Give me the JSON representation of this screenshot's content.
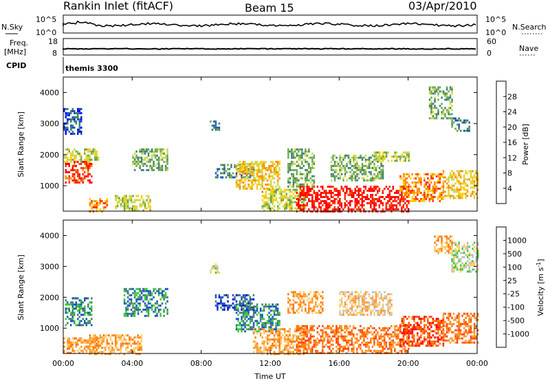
{
  "header": {
    "station": "Rankin Inlet (fitACF)",
    "beam": "Beam 15",
    "date": "03/Apr/2010"
  },
  "noise_panel": {
    "left_label": "N.Sky",
    "left_ticks": [
      "10^5",
      "10^0"
    ],
    "right_ticks": [
      "10^5",
      "10^0"
    ],
    "right_label": "N.Search"
  },
  "freq_panel": {
    "left_label_1": "Freq.",
    "left_label_2": "[MHz]",
    "left_ticks": [
      "18",
      "8"
    ],
    "right_ticks": [
      "60",
      "0"
    ],
    "right_label": "Nave"
  },
  "cpid_panel": {
    "left_label": "CPID",
    "program": "themis 3300"
  },
  "chart_data": [
    {
      "type": "heatmap",
      "name": "power",
      "ylabel": "Slant Range [km]",
      "xlabel": "Time UT",
      "ylim": [
        180,
        4500
      ],
      "xlim": [
        0,
        24
      ],
      "yticks": [
        "1000",
        "2000",
        "3000",
        "4000"
      ],
      "xticks": [
        "00:00",
        "04:00",
        "08:00",
        "12:00",
        "16:00",
        "20:00",
        "00:00"
      ],
      "colorbar": {
        "label": "Power [dB]",
        "ticks": [
          "28",
          "24",
          "20",
          "16",
          "12",
          "8",
          "4"
        ],
        "colors": [
          "#0000ff",
          "#1a4fbf",
          "#3d7f6e",
          "#6aa84f",
          "#c8d84a",
          "#ffcc00",
          "#ff8800",
          "#ff3300",
          "#ff0000"
        ]
      },
      "regions": [
        {
          "t0": 0.1,
          "t1": 1.6,
          "r0": 1100,
          "r1": 1800,
          "level": 7
        },
        {
          "t0": 0.0,
          "t1": 2.0,
          "r0": 1800,
          "r1": 2200,
          "level": 4
        },
        {
          "t0": 0.0,
          "t1": 1.0,
          "r0": 2700,
          "r1": 3500,
          "level": 1
        },
        {
          "t0": 1.5,
          "t1": 2.5,
          "r0": 180,
          "r1": 600,
          "level": 6
        },
        {
          "t0": 3.0,
          "t1": 5.0,
          "r0": 180,
          "r1": 700,
          "level": 4
        },
        {
          "t0": 4.0,
          "t1": 6.0,
          "r0": 1500,
          "r1": 2200,
          "level": 3
        },
        {
          "t0": 8.5,
          "t1": 9.0,
          "r0": 2800,
          "r1": 3100,
          "level": 2
        },
        {
          "t0": 8.8,
          "t1": 11.0,
          "r0": 1300,
          "r1": 1700,
          "level": 2
        },
        {
          "t0": 10.0,
          "t1": 12.5,
          "r0": 900,
          "r1": 1800,
          "level": 5
        },
        {
          "t0": 11.5,
          "t1": 14.0,
          "r0": 180,
          "r1": 900,
          "level": 4
        },
        {
          "t0": 13.0,
          "t1": 14.5,
          "r0": 1000,
          "r1": 2200,
          "level": 3
        },
        {
          "t0": 13.5,
          "t1": 20.0,
          "r0": 180,
          "r1": 1000,
          "level": 8
        },
        {
          "t0": 15.5,
          "t1": 18.5,
          "r0": 1200,
          "r1": 2000,
          "level": 3
        },
        {
          "t0": 18.0,
          "t1": 20.0,
          "r0": 1800,
          "r1": 2100,
          "level": 4
        },
        {
          "t0": 19.5,
          "t1": 22.0,
          "r0": 500,
          "r1": 1400,
          "level": 6
        },
        {
          "t0": 22.0,
          "t1": 24.0,
          "r0": 600,
          "r1": 1500,
          "level": 5
        },
        {
          "t0": 21.2,
          "t1": 22.5,
          "r0": 3200,
          "r1": 4200,
          "level": 3
        },
        {
          "t0": 22.5,
          "t1": 23.5,
          "r0": 2800,
          "r1": 3200,
          "level": 2
        }
      ]
    },
    {
      "type": "heatmap",
      "name": "velocity",
      "ylabel": "Slant Range [km]",
      "xlabel": "Time UT",
      "ylim": [
        180,
        4500
      ],
      "xlim": [
        0,
        24
      ],
      "yticks": [
        "1000",
        "2000",
        "3000",
        "4000"
      ],
      "xticks": [
        "00:00",
        "04:00",
        "08:00",
        "12:00",
        "16:00",
        "20:00",
        "00:00"
      ],
      "colorbar": {
        "label": "Velocity [m s",
        "label_sup": "-1",
        "label_end": "]",
        "ticks": [
          "1000",
          "500",
          "100",
          "25",
          "-25",
          "-100",
          "-500",
          "-1000"
        ],
        "colors": [
          "#ff0000",
          "#ff4400",
          "#ff7700",
          "#ff9933",
          "#ffcc66",
          "#bfbfbf",
          "#33cc33",
          "#3d7f6e",
          "#1a4fbf",
          "#0000cc"
        ]
      },
      "regions": [
        {
          "t0": 0.1,
          "t1": 1.6,
          "r0": 1100,
          "r1": 2000,
          "level": 7
        },
        {
          "t0": 0.0,
          "t1": 2.0,
          "r0": 180,
          "r1": 700,
          "level": 3
        },
        {
          "t0": 1.5,
          "t1": 4.5,
          "r0": 180,
          "r1": 800,
          "level": 3
        },
        {
          "t0": 3.5,
          "t1": 6.0,
          "r0": 1400,
          "r1": 2300,
          "level": 7
        },
        {
          "t0": 8.5,
          "t1": 9.0,
          "r0": 2800,
          "r1": 3100,
          "level": 5
        },
        {
          "t0": 8.8,
          "t1": 11.0,
          "r0": 1600,
          "r1": 2100,
          "level": 8
        },
        {
          "t0": 10.0,
          "t1": 12.5,
          "r0": 900,
          "r1": 1800,
          "level": 7
        },
        {
          "t0": 11.0,
          "t1": 14.0,
          "r0": 180,
          "r1": 1000,
          "level": 3
        },
        {
          "t0": 13.0,
          "t1": 15.0,
          "r0": 1500,
          "r1": 2200,
          "level": 3
        },
        {
          "t0": 13.5,
          "t1": 20.0,
          "r0": 180,
          "r1": 1100,
          "level": 2
        },
        {
          "t0": 16.0,
          "t1": 19.0,
          "r0": 1400,
          "r1": 2200,
          "level": 4
        },
        {
          "t0": 19.5,
          "t1": 22.0,
          "r0": 400,
          "r1": 1400,
          "level": 1
        },
        {
          "t0": 22.0,
          "t1": 24.0,
          "r0": 500,
          "r1": 1500,
          "level": 2
        },
        {
          "t0": 22.5,
          "t1": 24.0,
          "r0": 2800,
          "r1": 3800,
          "level": 5
        },
        {
          "t0": 21.5,
          "t1": 22.5,
          "r0": 3400,
          "r1": 4000,
          "level": 3
        }
      ]
    }
  ]
}
